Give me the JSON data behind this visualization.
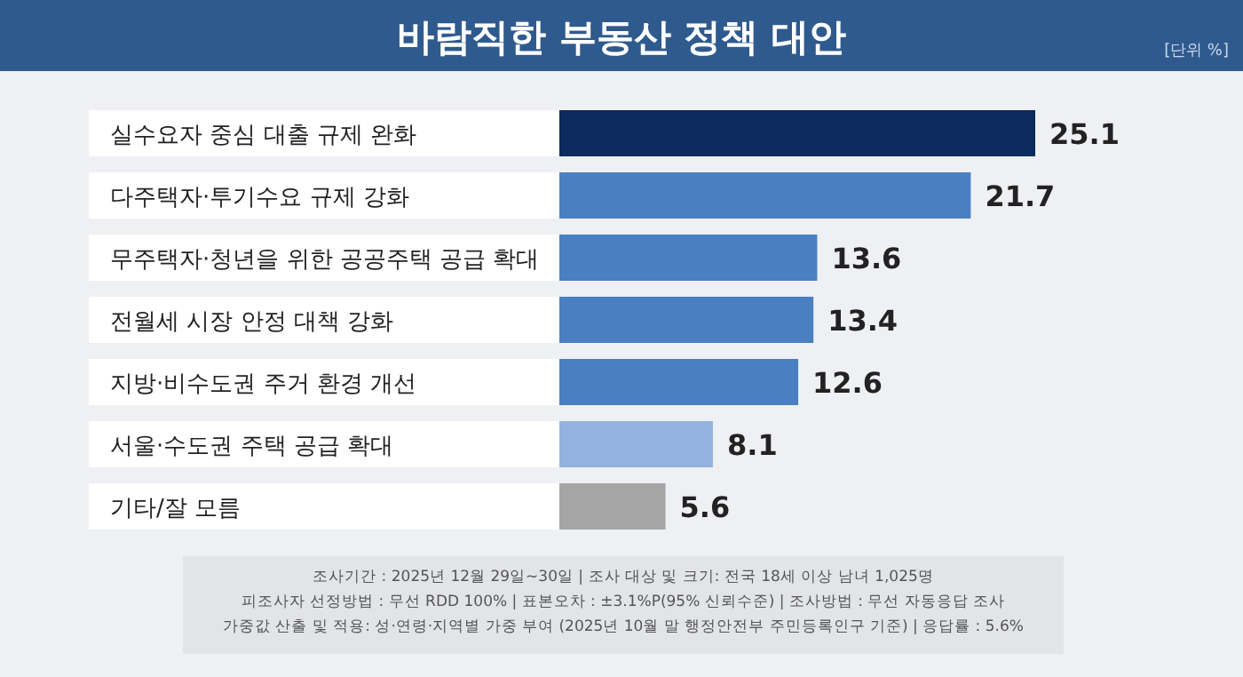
{
  "chart_data": {
    "type": "bar",
    "orientation": "horizontal",
    "title": "바람직한 부동산 정책 대안",
    "subtitle": "[단위 %]",
    "categories": [
      "실수요자 중심 대출 규제 완화",
      "다주택자·투기수요 규제 강화",
      "무주택자·청년을 위한 공공주택 공급 확대",
      "전월세 시장 안정 대책 강화",
      "지방·비수도권 주거 환경 개선",
      "서울·수도권 주택 공급 확대",
      "기타/잘 모름"
    ],
    "values": [
      25.1,
      21.7,
      13.6,
      13.4,
      12.6,
      8.1,
      5.6
    ],
    "colors": [
      "#0b2a5e",
      "#4a7fc2",
      "#4a7fc2",
      "#4a7fc2",
      "#4a7fc2",
      "#93b3de",
      "#a5a5a5"
    ],
    "data_labels": true,
    "annotations": [
      "조사기간 : 2025년 12월 29일~30일 | 조사 대상 및 크기: 전국 18세 이상 남녀 1,025명",
      "피조사자 선정방법 : 무선 RDD 100% | 표본오차 : ±3.1%P(95% 신뢰수준) | 조사방법 : 무선 자동응답 조사",
      "가중값 산출 및 적용: 성·연령·지역별 가중 부여 (2025년 10월 말 행정안전부 주민등록인구 기준) | 응답률 : 5.6%"
    ]
  }
}
